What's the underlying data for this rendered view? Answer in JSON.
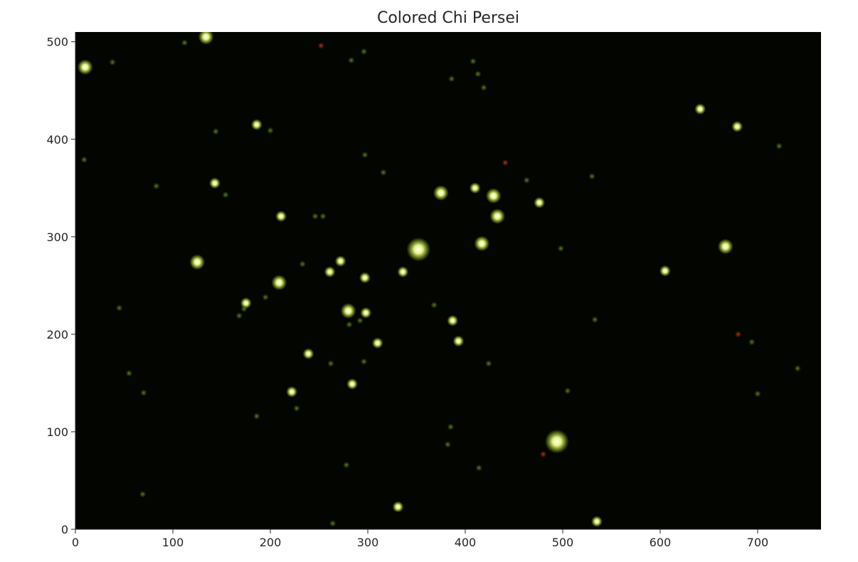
{
  "image": {
    "title": "Colored Chi Persei",
    "background_color": "#020500",
    "star_color": "#d8ff40",
    "x_axis": {
      "range": [
        0,
        765
      ],
      "ticks": [
        0,
        100,
        200,
        300,
        400,
        500,
        600,
        700
      ]
    },
    "y_axis": {
      "range": [
        0,
        510
      ],
      "ticks": [
        0,
        100,
        200,
        300,
        400,
        500
      ]
    },
    "stars": [
      {
        "x": 10,
        "y": 474,
        "mag": 3
      },
      {
        "x": 134,
        "y": 505,
        "mag": 3
      },
      {
        "x": 252,
        "y": 496,
        "mag": 1,
        "color": "#c03010"
      },
      {
        "x": 38,
        "y": 479,
        "mag": 1
      },
      {
        "x": 112,
        "y": 499,
        "mag": 1
      },
      {
        "x": 9,
        "y": 379,
        "mag": 1
      },
      {
        "x": 144,
        "y": 408,
        "mag": 1
      },
      {
        "x": 186,
        "y": 415,
        "mag": 2
      },
      {
        "x": 200,
        "y": 409,
        "mag": 1
      },
      {
        "x": 143,
        "y": 355,
        "mag": 2
      },
      {
        "x": 154,
        "y": 343,
        "mag": 1
      },
      {
        "x": 83,
        "y": 352,
        "mag": 1
      },
      {
        "x": 211,
        "y": 321,
        "mag": 2
      },
      {
        "x": 246,
        "y": 321,
        "mag": 1
      },
      {
        "x": 254,
        "y": 321,
        "mag": 1
      },
      {
        "x": 125,
        "y": 274,
        "mag": 3
      },
      {
        "x": 233,
        "y": 272,
        "mag": 1
      },
      {
        "x": 209,
        "y": 253,
        "mag": 3
      },
      {
        "x": 261,
        "y": 264,
        "mag": 2
      },
      {
        "x": 272,
        "y": 275,
        "mag": 2
      },
      {
        "x": 297,
        "y": 258,
        "mag": 2
      },
      {
        "x": 336,
        "y": 264,
        "mag": 2
      },
      {
        "x": 352,
        "y": 287,
        "mag": 5
      },
      {
        "x": 375,
        "y": 345,
        "mag": 3
      },
      {
        "x": 410,
        "y": 350,
        "mag": 2
      },
      {
        "x": 429,
        "y": 342,
        "mag": 3
      },
      {
        "x": 433,
        "y": 321,
        "mag": 3
      },
      {
        "x": 441,
        "y": 376,
        "mag": 1,
        "color": "#c03010"
      },
      {
        "x": 463,
        "y": 358,
        "mag": 1
      },
      {
        "x": 476,
        "y": 335,
        "mag": 2
      },
      {
        "x": 417,
        "y": 293,
        "mag": 3
      },
      {
        "x": 408,
        "y": 480,
        "mag": 1
      },
      {
        "x": 419,
        "y": 453,
        "mag": 1
      },
      {
        "x": 413,
        "y": 467,
        "mag": 1
      },
      {
        "x": 386,
        "y": 462,
        "mag": 1
      },
      {
        "x": 530,
        "y": 362,
        "mag": 1
      },
      {
        "x": 498,
        "y": 288,
        "mag": 1
      },
      {
        "x": 175,
        "y": 232,
        "mag": 2
      },
      {
        "x": 173,
        "y": 226,
        "mag": 1
      },
      {
        "x": 168,
        "y": 219,
        "mag": 1
      },
      {
        "x": 195,
        "y": 238,
        "mag": 1
      },
      {
        "x": 280,
        "y": 224,
        "mag": 3
      },
      {
        "x": 298,
        "y": 222,
        "mag": 2
      },
      {
        "x": 281,
        "y": 210,
        "mag": 1
      },
      {
        "x": 292,
        "y": 214,
        "mag": 1
      },
      {
        "x": 310,
        "y": 191,
        "mag": 2
      },
      {
        "x": 387,
        "y": 214,
        "mag": 2
      },
      {
        "x": 393,
        "y": 193,
        "mag": 2
      },
      {
        "x": 239,
        "y": 180,
        "mag": 2
      },
      {
        "x": 262,
        "y": 170,
        "mag": 1
      },
      {
        "x": 296,
        "y": 172,
        "mag": 1
      },
      {
        "x": 222,
        "y": 141,
        "mag": 2
      },
      {
        "x": 227,
        "y": 124,
        "mag": 1
      },
      {
        "x": 284,
        "y": 149,
        "mag": 2
      },
      {
        "x": 186,
        "y": 116,
        "mag": 1
      },
      {
        "x": 70,
        "y": 140,
        "mag": 1
      },
      {
        "x": 45,
        "y": 227,
        "mag": 1
      },
      {
        "x": 55,
        "y": 160,
        "mag": 1
      },
      {
        "x": 69,
        "y": 36,
        "mag": 1
      },
      {
        "x": 278,
        "y": 66,
        "mag": 1
      },
      {
        "x": 264,
        "y": 6,
        "mag": 1
      },
      {
        "x": 331,
        "y": 23,
        "mag": 2
      },
      {
        "x": 385,
        "y": 105,
        "mag": 1
      },
      {
        "x": 382,
        "y": 87,
        "mag": 1
      },
      {
        "x": 414,
        "y": 63,
        "mag": 1
      },
      {
        "x": 494,
        "y": 90,
        "mag": 5
      },
      {
        "x": 480,
        "y": 77,
        "mag": 1,
        "color": "#c03010"
      },
      {
        "x": 505,
        "y": 142,
        "mag": 1
      },
      {
        "x": 535,
        "y": 8,
        "mag": 2
      },
      {
        "x": 605,
        "y": 265,
        "mag": 2
      },
      {
        "x": 641,
        "y": 431,
        "mag": 2
      },
      {
        "x": 667,
        "y": 290,
        "mag": 3
      },
      {
        "x": 679,
        "y": 413,
        "mag": 2
      },
      {
        "x": 694,
        "y": 192,
        "mag": 1
      },
      {
        "x": 680,
        "y": 200,
        "mag": 1,
        "color": "#c03010"
      },
      {
        "x": 700,
        "y": 139,
        "mag": 1
      },
      {
        "x": 741,
        "y": 165,
        "mag": 1
      },
      {
        "x": 722,
        "y": 393,
        "mag": 1
      },
      {
        "x": 316,
        "y": 366,
        "mag": 1
      },
      {
        "x": 297,
        "y": 384,
        "mag": 1
      },
      {
        "x": 283,
        "y": 481,
        "mag": 1
      },
      {
        "x": 296,
        "y": 490,
        "mag": 1
      },
      {
        "x": 424,
        "y": 170,
        "mag": 1
      },
      {
        "x": 368,
        "y": 230,
        "mag": 1
      },
      {
        "x": 533,
        "y": 215,
        "mag": 1
      }
    ]
  }
}
